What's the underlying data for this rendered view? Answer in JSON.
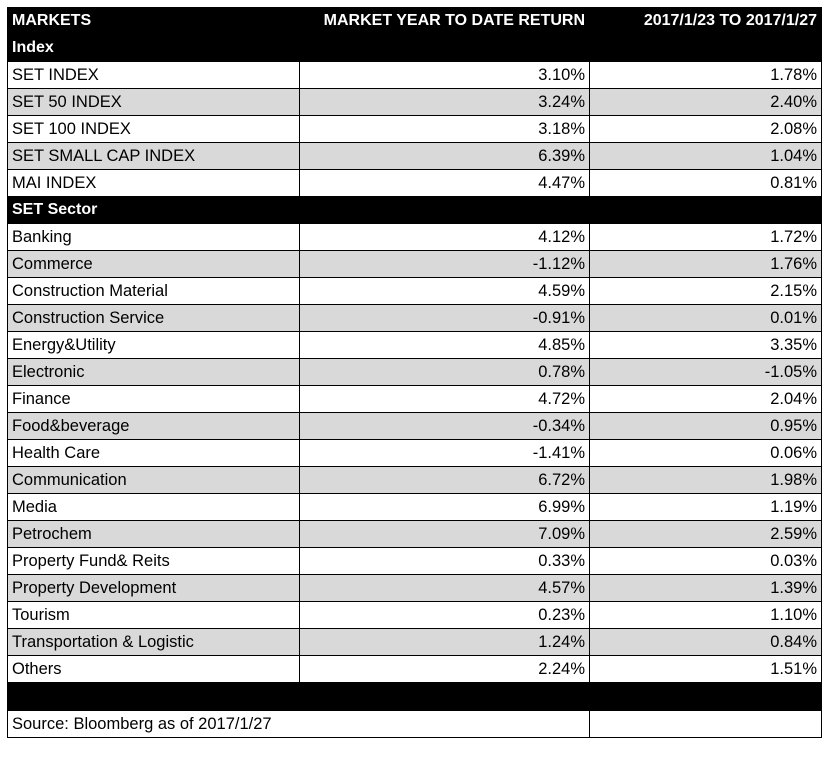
{
  "header": {
    "col1": "MARKETS",
    "col2": "MARKET YEAR TO DATE RETURN",
    "col3": "2017/1/23 TO 2017/1/27"
  },
  "sections": [
    {
      "title": "Index",
      "rows": [
        {
          "name": "SET INDEX",
          "ytd": "3.10%",
          "week": "1.78%"
        },
        {
          "name": "SET 50 INDEX",
          "ytd": "3.24%",
          "week": "2.40%"
        },
        {
          "name": "SET 100 INDEX",
          "ytd": "3.18%",
          "week": "2.08%"
        },
        {
          "name": "SET SMALL CAP INDEX",
          "ytd": "6.39%",
          "week": "1.04%"
        },
        {
          "name": "MAI INDEX",
          "ytd": "4.47%",
          "week": "0.81%"
        }
      ]
    },
    {
      "title": "SET Sector",
      "rows": [
        {
          "name": "Banking",
          "ytd": "4.12%",
          "week": "1.72%"
        },
        {
          "name": "Commerce",
          "ytd": "-1.12%",
          "week": "1.76%"
        },
        {
          "name": "Construction Material",
          "ytd": "4.59%",
          "week": "2.15%"
        },
        {
          "name": "Construction Service",
          "ytd": "-0.91%",
          "week": "0.01%"
        },
        {
          "name": "Energy&Utility",
          "ytd": "4.85%",
          "week": "3.35%"
        },
        {
          "name": "Electronic",
          "ytd": "0.78%",
          "week": "-1.05%"
        },
        {
          "name": "Finance",
          "ytd": "4.72%",
          "week": "2.04%"
        },
        {
          "name": "Food&beverage",
          "ytd": "-0.34%",
          "week": "0.95%"
        },
        {
          "name": "Health Care",
          "ytd": "-1.41%",
          "week": "0.06%"
        },
        {
          "name": "Communication",
          "ytd": "6.72%",
          "week": "1.98%"
        },
        {
          "name": "Media",
          "ytd": "6.99%",
          "week": "1.19%"
        },
        {
          "name": "Petrochem",
          "ytd": "7.09%",
          "week": "2.59%"
        },
        {
          "name": "Property Fund& Reits",
          "ytd": "0.33%",
          "week": "0.03%"
        },
        {
          "name": "Property Development",
          "ytd": "4.57%",
          "week": "1.39%"
        },
        {
          "name": "Tourism",
          "ytd": "0.23%",
          "week": "1.10%"
        },
        {
          "name": "Transportation & Logistic",
          "ytd": "1.24%",
          "week": "0.84%"
        },
        {
          "name": "Others",
          "ytd": "2.24%",
          "week": "1.51%"
        }
      ]
    }
  ],
  "footer": {
    "source": "Source: Bloomberg as of 2017/1/27"
  },
  "colors": {
    "header_bg": "#000000",
    "shade_bg": "#d9d9d9",
    "border": "#000000"
  }
}
